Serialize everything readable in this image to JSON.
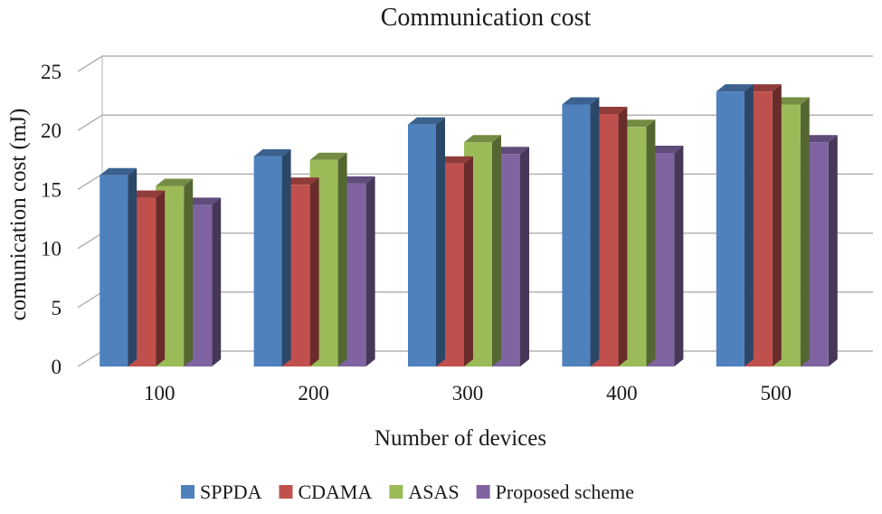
{
  "chart_data": {
    "type": "bar",
    "title": "Communication cost",
    "xlabel": "Number of devices",
    "ylabel": "comunication cost (mJ)",
    "categories": [
      "100",
      "200",
      "300",
      "400",
      "500"
    ],
    "ylim": [
      0,
      25
    ],
    "yticks": [
      0,
      5,
      10,
      15,
      20,
      25
    ],
    "grid": true,
    "legend_position": "bottom",
    "series": [
      {
        "name": "SPPDA",
        "color": "#4f81bd",
        "values": [
          16.2,
          17.8,
          20.5,
          22.2,
          23.3
        ]
      },
      {
        "name": "CDAMA",
        "color": "#c0504d",
        "values": [
          14.3,
          15.4,
          17.2,
          21.4,
          23.3
        ]
      },
      {
        "name": "ASAS",
        "color": "#9bbb59",
        "values": [
          15.3,
          17.5,
          19.0,
          20.3,
          22.2
        ]
      },
      {
        "name": "Proposed scheme",
        "color": "#8064a2",
        "values": [
          13.7,
          15.5,
          18.0,
          18.1,
          19.0
        ]
      }
    ]
  }
}
